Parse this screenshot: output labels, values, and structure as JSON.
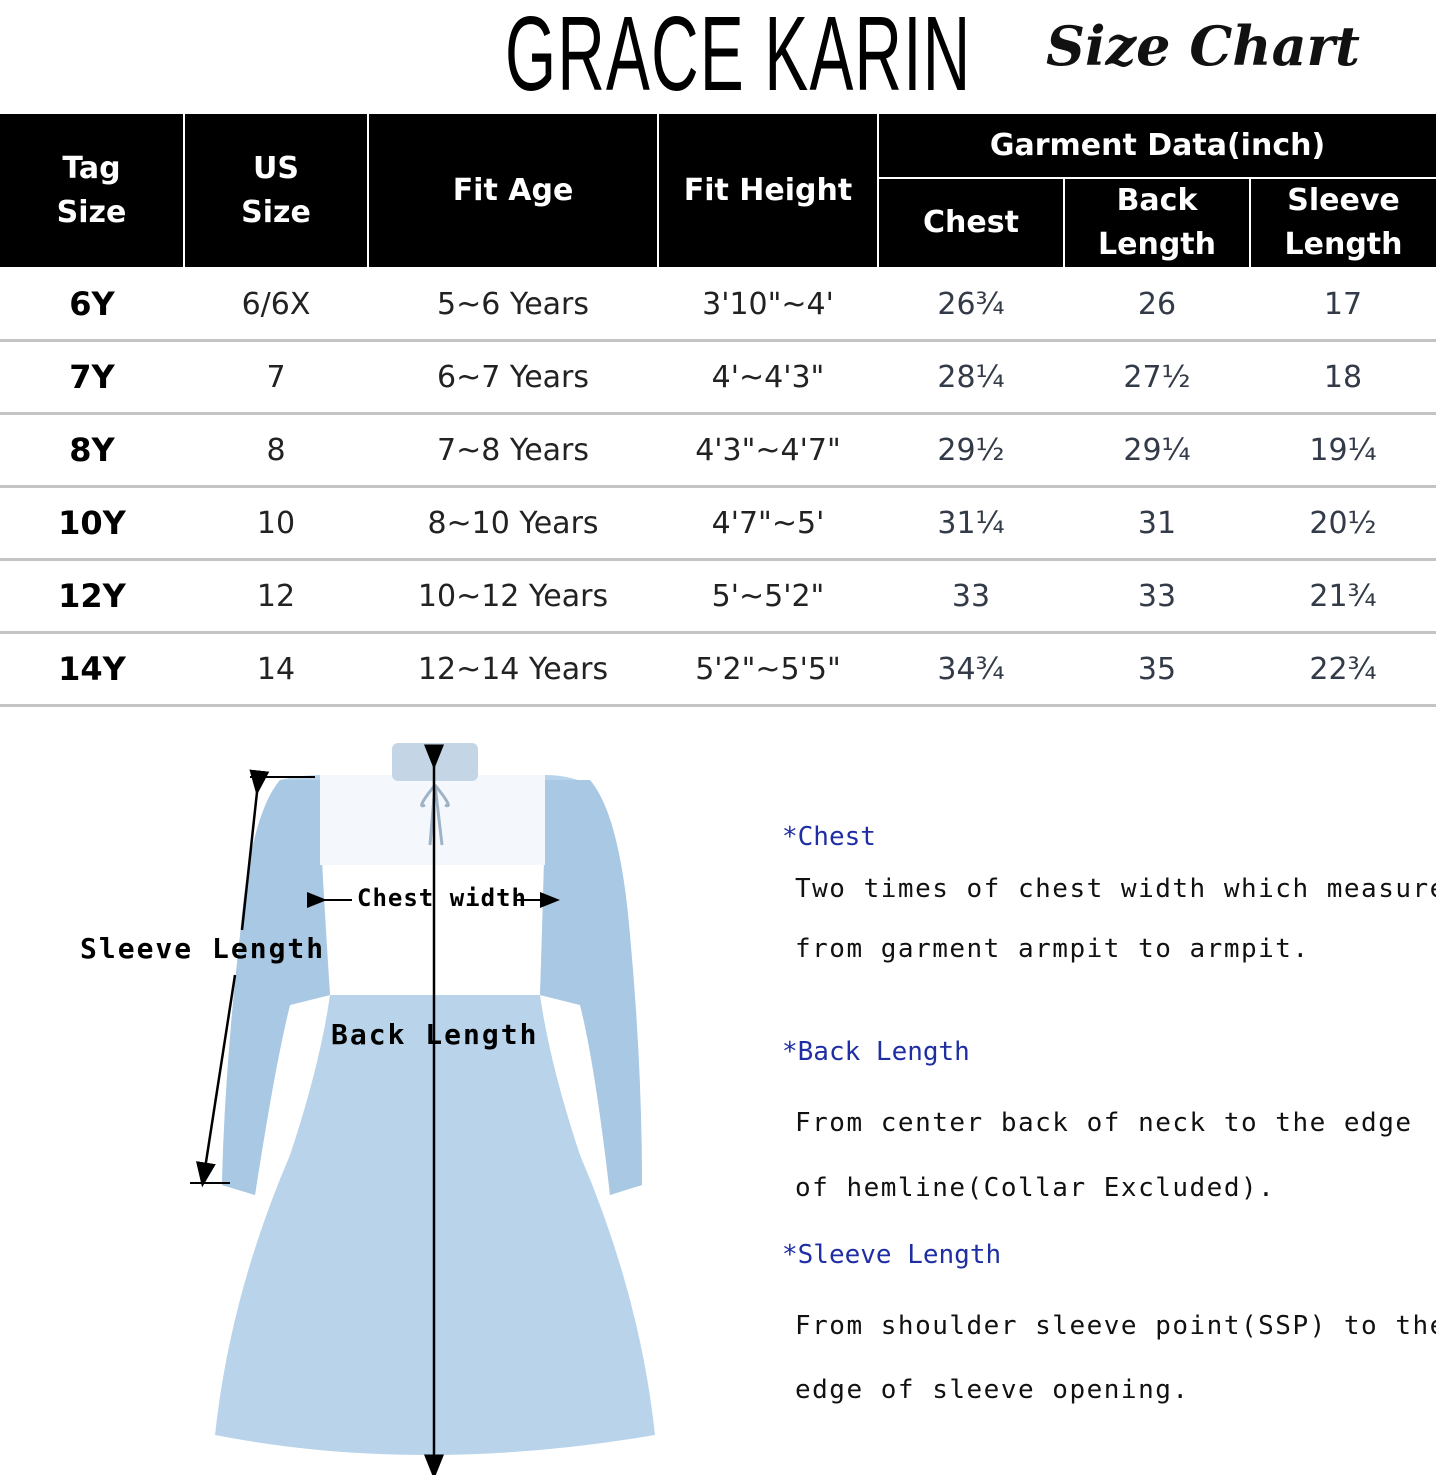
{
  "header": {
    "brand": "GRACE KARIN",
    "title": "Size Chart"
  },
  "table": {
    "columns": {
      "tag_size": "Tag\nSize",
      "us_size": "US\nSize",
      "fit_age": "Fit Age",
      "fit_height": "Fit Height",
      "garment_group": "Garment Data(inch)",
      "chest": "Chest",
      "back_length": "Back\nLength",
      "sleeve_length": "Sleeve\nLength"
    },
    "rows": [
      {
        "tag": "6Y",
        "us": "6/6X",
        "age": "5~6 Years",
        "height": "3'10\"~4'",
        "chest": "26¾",
        "back": "26",
        "sleeve": "17"
      },
      {
        "tag": "7Y",
        "us": "7",
        "age": "6~7 Years",
        "height": "4'~4'3\"",
        "chest": "28¼",
        "back": "27½",
        "sleeve": "18"
      },
      {
        "tag": "8Y",
        "us": "8",
        "age": "7~8 Years",
        "height": "4'3\"~4'7\"",
        "chest": "29½",
        "back": "29¼",
        "sleeve": "19¼"
      },
      {
        "tag": "10Y",
        "us": "10",
        "age": "8~10 Years",
        "height": "4'7\"~5'",
        "chest": "31¼",
        "back": "31",
        "sleeve": "20½"
      },
      {
        "tag": "12Y",
        "us": "12",
        "age": "10~12 Years",
        "height": "5'~5'2\"",
        "chest": "33",
        "back": "33",
        "sleeve": "21¾"
      },
      {
        "tag": "14Y",
        "us": "14",
        "age": "12~14 Years",
        "height": "5'2\"~5'5\"",
        "chest": "34¾",
        "back": "35",
        "sleeve": "22¾"
      }
    ]
  },
  "diagram": {
    "sleeve_label": "Sleeve Length",
    "chest_label": "Chest width",
    "back_label": "Back Length",
    "dress_color": "#b9d4ea"
  },
  "notes": {
    "chest_heading": "*Chest",
    "chest_line1": "Two times of chest width which measures",
    "chest_line2": "from garment armpit to armpit.",
    "back_heading": "*Back Length",
    "back_line1": "From center back of neck to the edge",
    "back_line2": "of hemline(Collar Excluded).",
    "sleeve_heading": "*Sleeve Length",
    "sleeve_line1": "From shoulder sleeve point(SSP) to the",
    "sleeve_line2": "edge of sleeve opening.",
    "heading_color": "#1f2fa3"
  }
}
